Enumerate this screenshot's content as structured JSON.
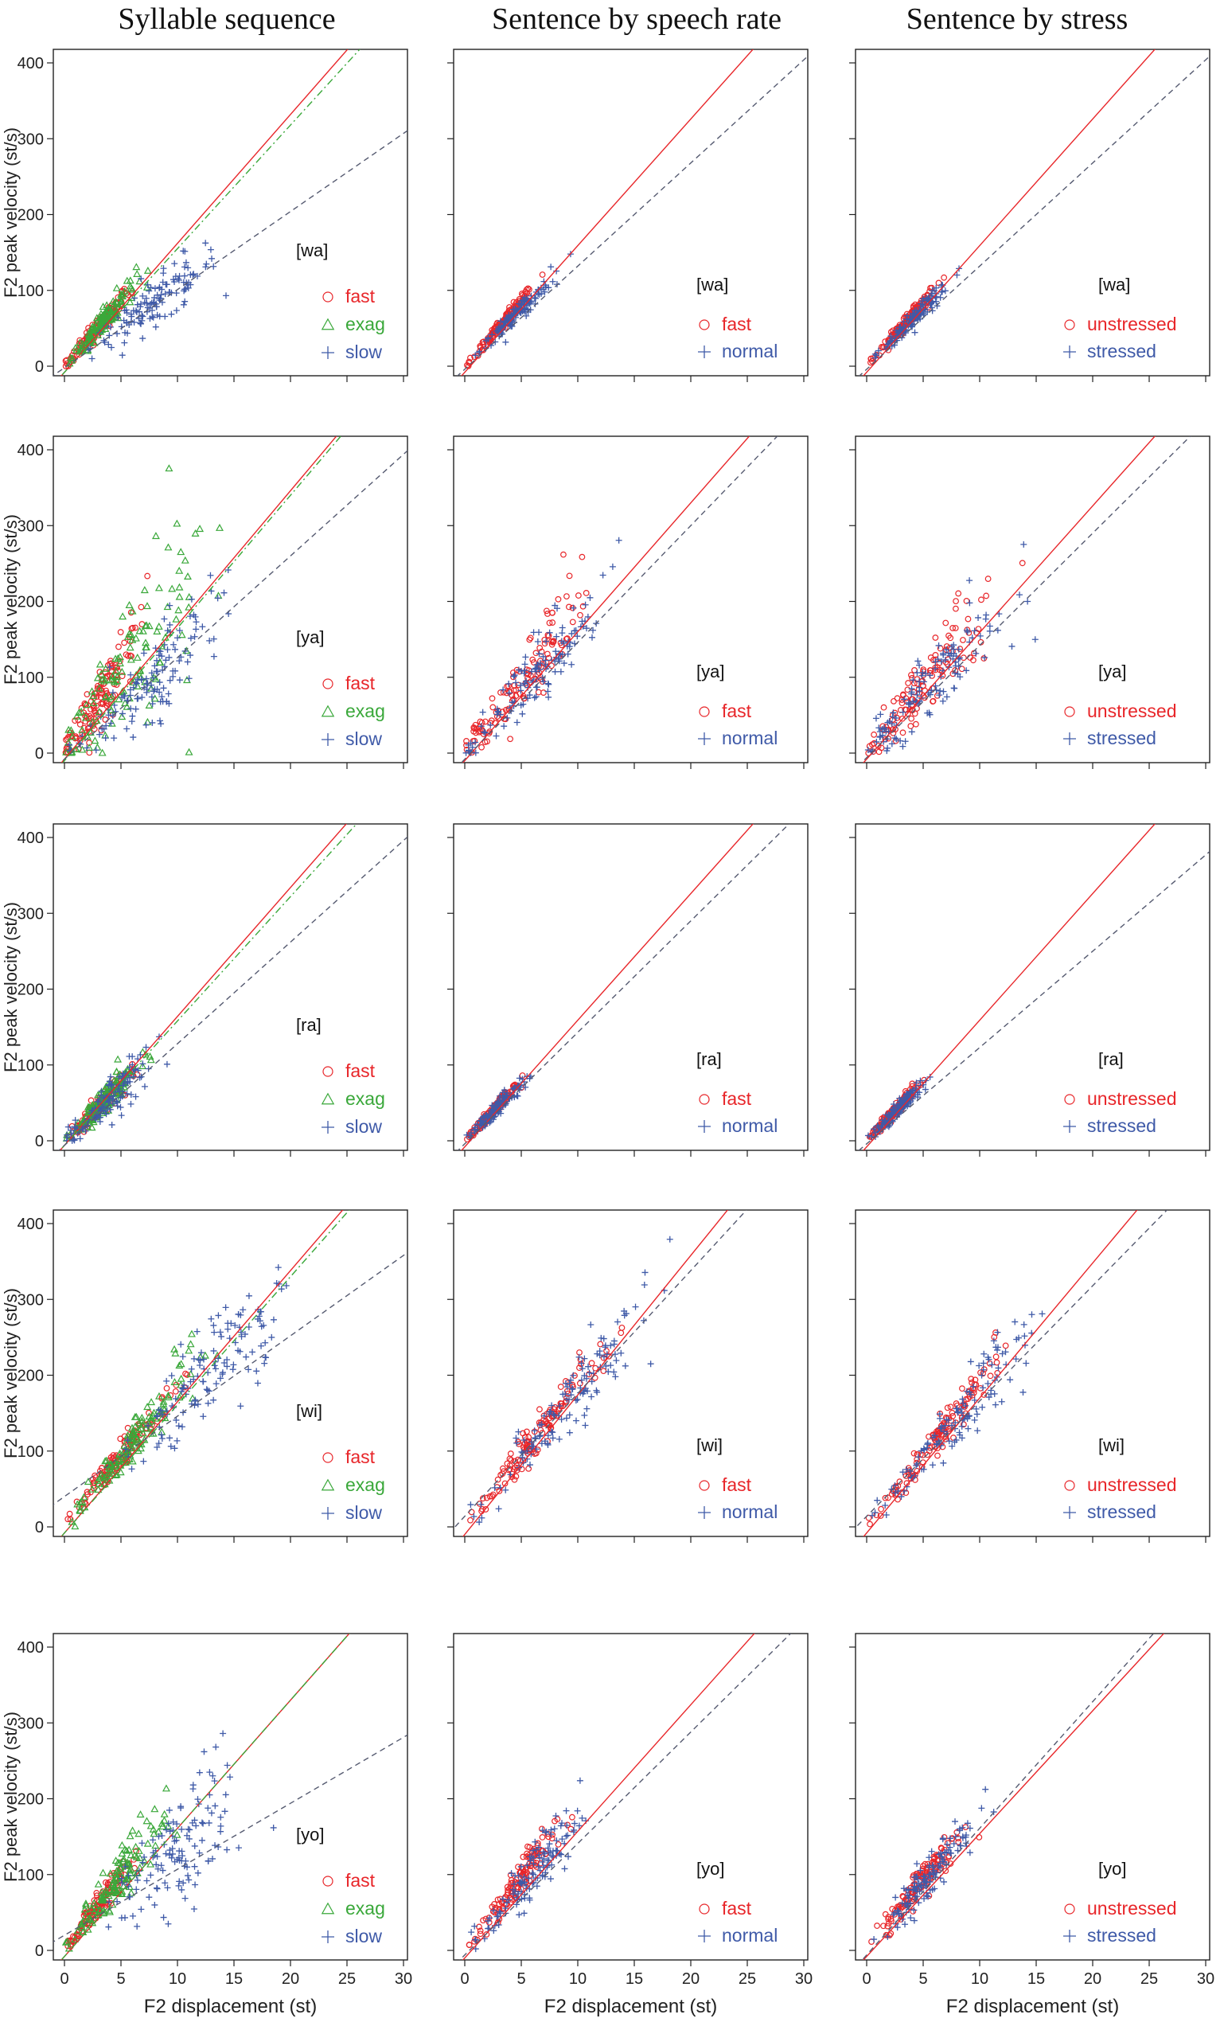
{
  "column_titles": [
    "Syllable sequence",
    "Sentence by speech rate",
    "Sentence by stress"
  ],
  "axis_labels": {
    "y": "F2 peak velocity (st/s)",
    "x": "F2 displacement (st)"
  },
  "y_ticks": [
    "0",
    "100",
    "200",
    "300",
    "400"
  ],
  "x_ticks": [
    "0",
    "5",
    "10",
    "15",
    "20",
    "25",
    "30"
  ],
  "colors": {
    "fast": "#e8262a",
    "exag": "#3aa83a",
    "slow": "#3f5aa8",
    "line_fast": "#e8262a",
    "line_exag": "#3aa83a",
    "line_slow": "#555a70"
  },
  "legends": {
    "syllable": [
      {
        "key": "fast",
        "label": "fast",
        "marker": "circle"
      },
      {
        "key": "exag",
        "label": "exag",
        "marker": "triangle"
      },
      {
        "key": "slow",
        "label": "slow",
        "marker": "plus"
      }
    ],
    "rate": [
      {
        "key": "fast",
        "label": "fast",
        "marker": "circle"
      },
      {
        "key": "slow",
        "label": "normal",
        "marker": "plus"
      }
    ],
    "stress": [
      {
        "key": "fast",
        "label": "unstressed",
        "marker": "circle"
      },
      {
        "key": "slow",
        "label": "stressed",
        "marker": "plus"
      }
    ]
  },
  "chart_data": [
    {
      "type": "scatter",
      "row": 0,
      "col": 0,
      "syllable": "[wa]",
      "xlim": [
        0,
        30
      ],
      "ylim": [
        0,
        400
      ],
      "legend": "syllable",
      "series": [
        {
          "name": "fast",
          "center_x": 3,
          "spread_x": 2,
          "slope": 17,
          "noise": 10
        },
        {
          "name": "exag",
          "center_x": 3.5,
          "spread_x": 2,
          "slope": 17.5,
          "noise": 12
        },
        {
          "name": "slow",
          "center_x": 8,
          "spread_x": 4,
          "slope": 10.5,
          "noise": 14
        }
      ],
      "fit_lines": [
        {
          "name": "fast",
          "slope": 17,
          "intercept": -8,
          "style": "solid"
        },
        {
          "name": "exag",
          "slope": 16.3,
          "intercept": -8,
          "style": "dotdash"
        },
        {
          "name": "slow",
          "slope": 10.3,
          "intercept": -2,
          "style": "dashed"
        }
      ]
    },
    {
      "type": "scatter",
      "row": 0,
      "col": 1,
      "syllable": "[wa]",
      "xlim": [
        0,
        30
      ],
      "ylim": [
        0,
        400
      ],
      "legend": "rate",
      "series": [
        {
          "name": "fast",
          "center_x": 3.5,
          "spread_x": 2,
          "slope": 17,
          "noise": 6
        },
        {
          "name": "normal",
          "center_x": 4.5,
          "spread_x": 2.2,
          "slope": 15,
          "noise": 8
        }
      ],
      "fit_lines": [
        {
          "name": "fast",
          "slope": 16.7,
          "intercept": -8,
          "style": "solid"
        },
        {
          "name": "normal",
          "slope": 13.6,
          "intercept": -4,
          "style": "dashed"
        }
      ]
    },
    {
      "type": "scatter",
      "row": 0,
      "col": 2,
      "syllable": "[wa]",
      "xlim": [
        0,
        30
      ],
      "ylim": [
        0,
        400
      ],
      "legend": "stress",
      "series": [
        {
          "name": "unstressed",
          "center_x": 3.5,
          "spread_x": 2,
          "slope": 17,
          "noise": 6
        },
        {
          "name": "stressed",
          "center_x": 4.5,
          "spread_x": 2.2,
          "slope": 15,
          "noise": 8
        }
      ],
      "fit_lines": [
        {
          "name": "unstressed",
          "slope": 16.7,
          "intercept": -8,
          "style": "solid"
        },
        {
          "name": "stressed",
          "slope": 13.6,
          "intercept": -4,
          "style": "dashed"
        }
      ]
    },
    {
      "type": "scatter",
      "row": 1,
      "col": 0,
      "syllable": "[ya]",
      "xlim": [
        0,
        30
      ],
      "ylim": [
        0,
        400
      ],
      "legend": "syllable",
      "series": [
        {
          "name": "fast",
          "center_x": 3,
          "spread_x": 2.5,
          "slope": 24,
          "noise": 30
        },
        {
          "name": "exag",
          "center_x": 5,
          "spread_x": 5,
          "slope": 20,
          "noise": 50
        },
        {
          "name": "slow",
          "center_x": 8,
          "spread_x": 4.5,
          "slope": 13,
          "noise": 25
        }
      ],
      "fit_lines": [
        {
          "name": "fast",
          "slope": 17.7,
          "intercept": -8,
          "style": "solid"
        },
        {
          "name": "exag",
          "slope": 17.5,
          "intercept": -10,
          "style": "dotdash"
        },
        {
          "name": "slow",
          "slope": 13.4,
          "intercept": -8,
          "style": "dashed"
        }
      ]
    },
    {
      "type": "scatter",
      "row": 1,
      "col": 1,
      "syllable": "[ya]",
      "xlim": [
        0,
        30
      ],
      "ylim": [
        0,
        400
      ],
      "legend": "rate",
      "series": [
        {
          "name": "fast",
          "center_x": 5,
          "spread_x": 4,
          "slope": 19,
          "noise": 25
        },
        {
          "name": "normal",
          "center_x": 6,
          "spread_x": 4.5,
          "slope": 16,
          "noise": 25
        }
      ],
      "fit_lines": [
        {
          "name": "fast",
          "slope": 17,
          "intercept": -10,
          "style": "solid"
        },
        {
          "name": "normal",
          "slope": 15.4,
          "intercept": -8,
          "style": "dashed"
        }
      ]
    },
    {
      "type": "scatter",
      "row": 1,
      "col": 2,
      "syllable": "[ya]",
      "xlim": [
        0,
        30
      ],
      "ylim": [
        0,
        400
      ],
      "legend": "stress",
      "series": [
        {
          "name": "unstressed",
          "center_x": 5,
          "spread_x": 4,
          "slope": 18,
          "noise": 25
        },
        {
          "name": "stressed",
          "center_x": 6,
          "spread_x": 4.5,
          "slope": 16,
          "noise": 25
        }
      ],
      "fit_lines": [
        {
          "name": "unstressed",
          "slope": 16.7,
          "intercept": -8,
          "style": "solid"
        },
        {
          "name": "stressed",
          "slope": 14.8,
          "intercept": -6,
          "style": "dashed"
        }
      ]
    },
    {
      "type": "scatter",
      "row": 2,
      "col": 0,
      "syllable": "[ra]",
      "xlim": [
        0,
        30
      ],
      "ylim": [
        0,
        400
      ],
      "legend": "syllable",
      "series": [
        {
          "name": "fast",
          "center_x": 3,
          "spread_x": 1.8,
          "slope": 15,
          "noise": 12
        },
        {
          "name": "exag",
          "center_x": 3.5,
          "spread_x": 2,
          "slope": 15,
          "noise": 12
        },
        {
          "name": "slow",
          "center_x": 4,
          "spread_x": 2.5,
          "slope": 14,
          "noise": 18
        }
      ],
      "fit_lines": [
        {
          "name": "fast",
          "slope": 17,
          "intercept": -6,
          "style": "solid"
        },
        {
          "name": "exag",
          "slope": 16.4,
          "intercept": -6,
          "style": "dotdash"
        },
        {
          "name": "slow",
          "slope": 13.4,
          "intercept": -6,
          "style": "dashed"
        }
      ]
    },
    {
      "type": "scatter",
      "row": 2,
      "col": 1,
      "syllable": "[ra]",
      "xlim": [
        0,
        30
      ],
      "ylim": [
        0,
        400
      ],
      "legend": "rate",
      "series": [
        {
          "name": "fast",
          "center_x": 2.5,
          "spread_x": 1.5,
          "slope": 16,
          "noise": 6
        },
        {
          "name": "normal",
          "center_x": 3,
          "spread_x": 1.8,
          "slope": 15,
          "noise": 8
        }
      ],
      "fit_lines": [
        {
          "name": "fast",
          "slope": 16.7,
          "intercept": -8,
          "style": "solid"
        },
        {
          "name": "normal",
          "slope": 14.7,
          "intercept": -4,
          "style": "dashed"
        }
      ]
    },
    {
      "type": "scatter",
      "row": 2,
      "col": 2,
      "syllable": "[ra]",
      "xlim": [
        0,
        30
      ],
      "ylim": [
        0,
        400
      ],
      "legend": "stress",
      "series": [
        {
          "name": "unstressed",
          "center_x": 2.5,
          "spread_x": 1.5,
          "slope": 16,
          "noise": 6
        },
        {
          "name": "stressed",
          "center_x": 3,
          "spread_x": 1.8,
          "slope": 15,
          "noise": 8
        }
      ],
      "fit_lines": [
        {
          "name": "unstressed",
          "slope": 16.7,
          "intercept": -8,
          "style": "solid"
        },
        {
          "name": "stressed",
          "slope": 12.7,
          "intercept": -4,
          "style": "dashed"
        }
      ]
    },
    {
      "type": "scatter",
      "row": 3,
      "col": 0,
      "syllable": "[wi]",
      "xlim": [
        0,
        30
      ],
      "ylim": [
        0,
        400
      ],
      "legend": "syllable",
      "series": [
        {
          "name": "fast",
          "center_x": 5,
          "spread_x": 3,
          "slope": 19,
          "noise": 12
        },
        {
          "name": "exag",
          "center_x": 6.5,
          "spread_x": 3.5,
          "slope": 19,
          "noise": 15
        },
        {
          "name": "slow",
          "center_x": 13,
          "spread_x": 5,
          "slope": 16,
          "noise": 20
        }
      ],
      "fit_lines": [
        {
          "name": "fast",
          "slope": 17.3,
          "intercept": -8,
          "style": "solid"
        },
        {
          "name": "exag",
          "slope": 16.9,
          "intercept": -8,
          "style": "dotdash"
        },
        {
          "name": "slow",
          "slope": 10.6,
          "intercept": 40,
          "style": "dashed"
        }
      ]
    },
    {
      "type": "scatter",
      "row": 3,
      "col": 1,
      "syllable": "[wi]",
      "xlim": [
        0,
        30
      ],
      "ylim": [
        0,
        400
      ],
      "legend": "rate",
      "series": [
        {
          "name": "fast",
          "center_x": 6,
          "spread_x": 4,
          "slope": 19,
          "noise": 12
        },
        {
          "name": "normal",
          "center_x": 9,
          "spread_x": 5,
          "slope": 18,
          "noise": 18
        }
      ],
      "fit_lines": [
        {
          "name": "fast",
          "slope": 18.4,
          "intercept": -10,
          "style": "solid"
        },
        {
          "name": "normal",
          "slope": 16.2,
          "intercept": 14,
          "style": "dashed"
        }
      ]
    },
    {
      "type": "scatter",
      "row": 3,
      "col": 2,
      "syllable": "[wi]",
      "xlim": [
        0,
        30
      ],
      "ylim": [
        0,
        400
      ],
      "legend": "stress",
      "series": [
        {
          "name": "unstressed",
          "center_x": 6,
          "spread_x": 4,
          "slope": 19,
          "noise": 12
        },
        {
          "name": "stressed",
          "center_x": 8,
          "spread_x": 5,
          "slope": 18,
          "noise": 18
        }
      ],
      "fit_lines": [
        {
          "name": "unstressed",
          "slope": 17.8,
          "intercept": -8,
          "style": "solid"
        },
        {
          "name": "stressed",
          "slope": 15.2,
          "intercept": 14,
          "style": "dashed"
        }
      ]
    },
    {
      "type": "scatter",
      "row": 4,
      "col": 0,
      "syllable": "[yo]",
      "xlim": [
        0,
        30
      ],
      "ylim": [
        0,
        400
      ],
      "legend": "syllable",
      "series": [
        {
          "name": "fast",
          "center_x": 3,
          "spread_x": 2,
          "slope": 20,
          "noise": 12
        },
        {
          "name": "exag",
          "center_x": 5,
          "spread_x": 3,
          "slope": 20,
          "noise": 22
        },
        {
          "name": "slow",
          "center_x": 10,
          "spread_x": 4,
          "slope": 13,
          "noise": 30
        }
      ],
      "fit_lines": [
        {
          "name": "fast",
          "slope": 16.9,
          "intercept": -8,
          "style": "solid"
        },
        {
          "name": "exag",
          "slope": 16.9,
          "intercept": -8,
          "style": "dotdash"
        },
        {
          "name": "slow",
          "slope": 8.7,
          "intercept": 20,
          "style": "dashed"
        }
      ]
    },
    {
      "type": "scatter",
      "row": 4,
      "col": 1,
      "syllable": "[yo]",
      "xlim": [
        0,
        30
      ],
      "ylim": [
        0,
        400
      ],
      "legend": "rate",
      "series": [
        {
          "name": "fast",
          "center_x": 4.5,
          "spread_x": 2.5,
          "slope": 19,
          "noise": 15
        },
        {
          "name": "normal",
          "center_x": 6,
          "spread_x": 3,
          "slope": 17,
          "noise": 20
        }
      ],
      "fit_lines": [
        {
          "name": "fast",
          "slope": 16.7,
          "intercept": -10,
          "style": "solid"
        },
        {
          "name": "normal",
          "slope": 14.7,
          "intercept": -6,
          "style": "dashed"
        }
      ]
    },
    {
      "type": "scatter",
      "row": 4,
      "col": 2,
      "syllable": "[yo]",
      "xlim": [
        0,
        30
      ],
      "ylim": [
        0,
        400
      ],
      "legend": "stress",
      "series": [
        {
          "name": "unstressed",
          "center_x": 5,
          "spread_x": 2.5,
          "slope": 19,
          "noise": 15
        },
        {
          "name": "stressed",
          "center_x": 5.5,
          "spread_x": 3,
          "slope": 18,
          "noise": 18
        }
      ],
      "fit_lines": [
        {
          "name": "unstressed",
          "slope": 16.2,
          "intercept": -8,
          "style": "solid"
        },
        {
          "name": "stressed",
          "slope": 16.7,
          "intercept": -6,
          "style": "dashed"
        }
      ]
    }
  ]
}
